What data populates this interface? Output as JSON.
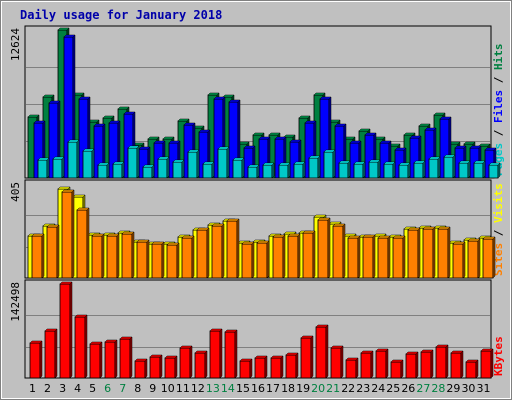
{
  "chart_data": {
    "type": "bar",
    "title": "Daily usage for January 2018",
    "days": [
      "1",
      "2",
      "3",
      "4",
      "5",
      "6",
      "7",
      "8",
      "9",
      "10",
      "11",
      "12",
      "13",
      "14",
      "15",
      "16",
      "17",
      "18",
      "19",
      "20",
      "21",
      "22",
      "23",
      "24",
      "25",
      "26",
      "27",
      "28",
      "29",
      "30",
      "31"
    ],
    "weekend_days": [
      "6",
      "7",
      "13",
      "14",
      "20",
      "21",
      "27",
      "28"
    ],
    "panels": [
      {
        "id": "top",
        "ymax_label": "12624",
        "ymax": 12624,
        "side_label_parts": [
          "Pages",
          "Files",
          "Hits"
        ],
        "side_label_colors": [
          "#00c8c8",
          "#0000ff",
          "#008040"
        ],
        "series": [
          {
            "name": "Hits",
            "color": "#008040",
            "values": [
              5200,
              6900,
              12624,
              7100,
              4800,
              5100,
              5900,
              2800,
              3300,
              3300,
              4900,
              4300,
              7100,
              6900,
              2900,
              3700,
              3700,
              3500,
              5100,
              7100,
              4800,
              3300,
              4000,
              3300,
              2700,
              3700,
              4400,
              5400,
              2900,
              2900,
              2700
            ]
          },
          {
            "name": "Files",
            "color": "#0000ff",
            "values": [
              4700,
              6400,
              12000,
              6700,
              4400,
              4700,
              5500,
              2500,
              3000,
              3000,
              4500,
              3900,
              6700,
              6500,
              2600,
              3300,
              3300,
              3100,
              4700,
              6700,
              4400,
              3000,
              3700,
              3000,
              2400,
              3400,
              4100,
              5000,
              2600,
              2600,
              2400
            ]
          },
          {
            "name": "Pages",
            "color": "#00c8c8",
            "values": [
              1500,
              1600,
              3100,
              2300,
              1100,
              1200,
              2600,
              900,
              1600,
              1400,
              2200,
              1200,
              2500,
              1500,
              900,
              1100,
              1100,
              1200,
              1700,
              2200,
              1300,
              1200,
              1400,
              1200,
              1100,
              1300,
              1600,
              1800,
              1300,
              1300,
              1100
            ]
          }
        ]
      },
      {
        "id": "middle",
        "ymax_label": "405",
        "ymax": 405,
        "side_label_parts": [
          "Sites",
          "Visits"
        ],
        "side_label_colors": [
          "#ff8000",
          "#ffff00"
        ],
        "series": [
          {
            "name": "Visits",
            "color": "#ffff00",
            "values": [
              182,
              226,
              385,
              348,
              185,
              185,
              192,
              157,
              148,
              145,
              177,
              208,
              228,
              246,
              152,
              153,
              183,
              188,
              196,
              262,
              231,
              179,
              178,
              181,
              176,
              210,
              215,
              215,
              149,
              164,
              174
            ]
          },
          {
            "name": "Sites",
            "color": "#ff8000",
            "values": [
              180,
              220,
              370,
              295,
              180,
              180,
              188,
              153,
              145,
              143,
              173,
              205,
              222,
              246,
              148,
              150,
              178,
              180,
              193,
              252,
              225,
              172,
              175,
              172,
              172,
              205,
              212,
              212,
              145,
              158,
              170
            ]
          }
        ]
      },
      {
        "id": "bottom",
        "ymax_label": "142498",
        "ymax": 142498,
        "side_label_parts": [
          "KBytes"
        ],
        "side_label_colors": [
          "#ff0000"
        ],
        "series": [
          {
            "name": "KBytes",
            "color": "#ff0000",
            "values": [
              53000,
              72000,
              142498,
              92000,
              52000,
              55000,
              59000,
              26000,
              32000,
              30000,
              46000,
              38000,
              72000,
              70000,
              26000,
              30000,
              31000,
              35000,
              61000,
              78000,
              46000,
              27000,
              38000,
              41000,
              24000,
              37000,
              39000,
              47000,
              38000,
              25000,
              41000
            ]
          }
        ]
      }
    ]
  }
}
